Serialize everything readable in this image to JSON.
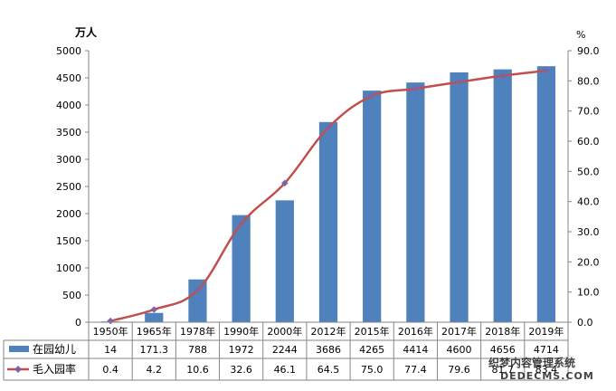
{
  "chart_data": {
    "type": "bar",
    "categories": [
      "1950年",
      "1965年",
      "1978年",
      "1990年",
      "2000年",
      "2012年",
      "2015年",
      "2016年",
      "2017年",
      "2018年",
      "2019年"
    ],
    "y_left_unit": "万人",
    "y_right_unit": "%",
    "y_left_ticks": [
      "0",
      "500",
      "1000",
      "1500",
      "2000",
      "2500",
      "3000",
      "3500",
      "4000",
      "4500",
      "5000"
    ],
    "y_right_ticks": [
      "0.0",
      "10.0",
      "20.0",
      "30.0",
      "40.0",
      "50.0",
      "60.0",
      "70.0",
      "80.0",
      "90.0"
    ],
    "y_left_range": [
      0,
      5000
    ],
    "y_right_range": [
      0,
      90
    ],
    "series": [
      {
        "name": "在园幼儿",
        "type": "bar",
        "axis": "left",
        "color": "#4f81bd",
        "values": [
          14,
          171.3,
          788,
          1972,
          2244,
          3686,
          4265,
          4414,
          4600,
          4656,
          4714
        ],
        "labels": [
          "14",
          "171.3",
          "788",
          "1972",
          "2244",
          "3686",
          "4265",
          "4414",
          "4600",
          "4656",
          "4714"
        ]
      },
      {
        "name": "毛入园率",
        "type": "line",
        "axis": "right",
        "color": "#c0504d",
        "marker_color": "#8064a2",
        "values": [
          0.4,
          4.2,
          10.6,
          32.6,
          46.1,
          64.5,
          75.0,
          77.4,
          79.6,
          81.7,
          83.4
        ],
        "labels": [
          "0.4",
          "4.2",
          "10.6",
          "32.6",
          "46.1",
          "64.5",
          "75.0",
          "77.4",
          "79.6",
          "81.7",
          "83.4"
        ]
      }
    ],
    "grid": false,
    "data_table": true
  },
  "watermark": {
    "line1": "织梦内容管理系统",
    "line2": "DEDECMS.COM"
  }
}
